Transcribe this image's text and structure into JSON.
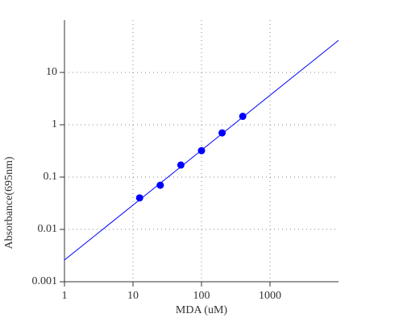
{
  "chart_data": {
    "type": "scatter",
    "xlabel": "MDA (uM)",
    "ylabel": "Absorbance(695nm)",
    "xlog": true,
    "ylog": true,
    "grid": true,
    "xlim": [
      1,
      10000
    ],
    "ylim": [
      0.001,
      100
    ],
    "xticks": [
      1,
      10,
      100,
      1000
    ],
    "yticks": [
      0.001,
      0.01,
      0.1,
      1,
      10
    ],
    "series": [
      {
        "type": "scatter",
        "color": "#0000ff",
        "x": [
          12.5,
          25,
          50,
          100,
          200,
          400
        ],
        "values": [
          0.04,
          0.07,
          0.17,
          0.32,
          0.7,
          1.45
        ]
      },
      {
        "type": "line",
        "color": "#0000ff",
        "x": [
          1,
          10000
        ],
        "values": [
          0.0026,
          41
        ]
      }
    ]
  }
}
